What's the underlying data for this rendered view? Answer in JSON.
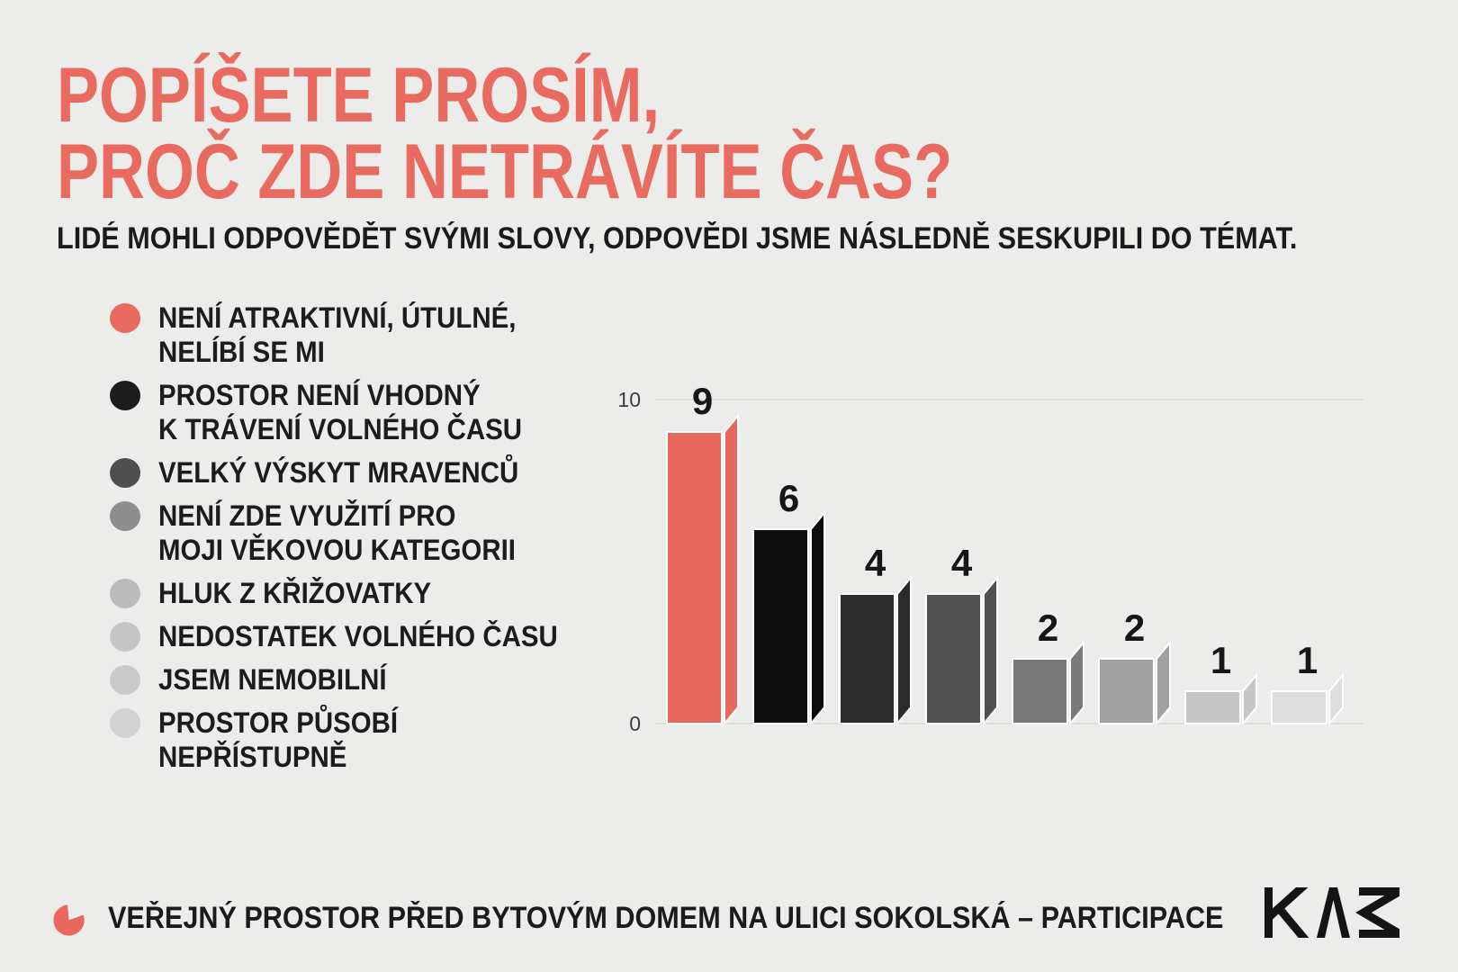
{
  "page": {
    "background_color": "#ececea"
  },
  "header": {
    "title_lines": [
      "POPÍŠETE PROSÍM,",
      "PROČ ZDE NETRÁVÍTE ČAS?"
    ],
    "title_color": "#e96a5f",
    "subtitle": "LIDÉ MOHLI ODPOVĚDĚT SVÝMI SLOVY, ODPOVĚDI JSME NÁSLEDNĚ SESKUPILI DO TÉMAT."
  },
  "legend": {
    "items": [
      {
        "label": "NENÍ ATRAKTIVNÍ, ÚTULNÉ,\nNELÍBÍ SE MI",
        "color": "#e96b5f"
      },
      {
        "label": "PROSTOR NENÍ VHODNÝ\nK TRÁVENÍ VOLNÉHO ČASU",
        "color": "#1c1c1c"
      },
      {
        "label": "VELKÝ VÝSKYT MRAVENCŮ",
        "color": "#4f4f4f"
      },
      {
        "label": "NENÍ ZDE VYUŽITÍ PRO\nMOJI VĚKOVOU KATEGORII",
        "color": "#8e8e8e"
      },
      {
        "label": "HLUK Z KŘIŽOVATKY",
        "color": "#bcbcbc"
      },
      {
        "label": "NEDOSTATEK VOLNÉHO ČASU",
        "color": "#c5c5c5"
      },
      {
        "label": "JSEM NEMOBILNÍ",
        "color": "#c9c9c9"
      },
      {
        "label": "PROSTOR PŮSOBÍ\nNEPŘÍSTUPNĚ",
        "color": "#d2d2d2"
      }
    ]
  },
  "chart_data": {
    "type": "bar",
    "title": "POPÍŠETE PROSÍM, PROČ ZDE NETRÁVÍTE ČAS?",
    "categories": [
      "NENÍ ATRAKTIVNÍ, ÚTULNÉ, NELÍBÍ SE MI",
      "PROSTOR NENÍ VHODNÝ K TRÁVENÍ VOLNÉHO ČASU",
      "VELKÝ VÝSKYT MRAVENCŮ",
      "NENÍ ZDE VYUŽITÍ PRO MOJI VĚKOVOU KATEGORII",
      "HLUK Z KŘIŽOVATKY",
      "NEDOSTATEK VOLNÉHO ČASU",
      "JSEM NEMOBILNÍ",
      "PROSTOR PŮSOBÍ NEPŘÍSTUPNĚ"
    ],
    "values": [
      9,
      6,
      4,
      4,
      2,
      2,
      1,
      1
    ],
    "bar_colors": [
      "#e9685d",
      "#0d0d0d",
      "#2b2b2b",
      "#515151",
      "#7a7a7a",
      "#a1a1a1",
      "#c6c6c6",
      "#dedede"
    ],
    "value_label_color": "#161616",
    "xlabel": "",
    "ylabel": "",
    "ylim": [
      0,
      10
    ],
    "yticks": [
      10,
      0
    ],
    "tick_color": "#3e3e3e",
    "gridline_color": "#dcdcd9",
    "grid": "horizontal lines at yticks only",
    "legend_position": "left",
    "bar_style": "3d folded side panel with white separators"
  },
  "footer": {
    "caption": "VEŘEJNÝ PROSTOR PŘED BYTOVÝM DOMEM NA ULICI SOKOLSKÁ – PARTICIPACE",
    "icon_color": "#e9685d",
    "logo_text": "KAM",
    "logo_color": "#141414"
  }
}
